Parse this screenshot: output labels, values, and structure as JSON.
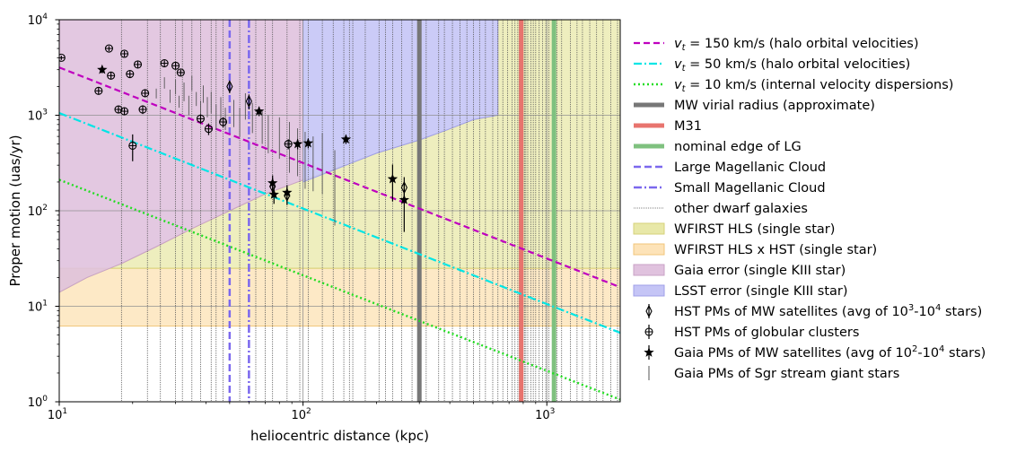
{
  "chart_data": {
    "type": "scatter",
    "xlabel": "heliocentric distance (kpc)",
    "ylabel": "Proper motion (uas/yr)",
    "x_scale": "log",
    "y_scale": "log",
    "xlim": [
      10,
      2000
    ],
    "ylim": [
      1,
      10000
    ],
    "grid": "major, gray",
    "legend_placement": "right, outside plot",
    "x_ticks": [
      {
        "value": 10,
        "base": "10",
        "exp": "1"
      },
      {
        "value": 100,
        "base": "10",
        "exp": "2"
      },
      {
        "value": 1000,
        "base": "10",
        "exp": "3"
      }
    ],
    "y_ticks": [
      {
        "value": 1,
        "base": "10",
        "exp": "0"
      },
      {
        "value": 10,
        "base": "10",
        "exp": "1"
      },
      {
        "value": 100,
        "base": "10",
        "exp": "2"
      },
      {
        "value": 1000,
        "base": "10",
        "exp": "3"
      },
      {
        "value": 10000,
        "base": "10",
        "exp": "4"
      }
    ],
    "legend": [
      {
        "key": "vt150",
        "prefix": "v",
        "sub": "t",
        "text": " = 150 km/s (halo orbital velocities)",
        "kind": "line",
        "color": "#bf00bf",
        "dash": "7 4",
        "width": 2.2
      },
      {
        "key": "vt50",
        "prefix": "v",
        "sub": "t",
        "text": " = 50 km/s (halo orbital velocities)",
        "kind": "line",
        "color": "#00e5e5",
        "dash": "9 3 2 3",
        "width": 2.2
      },
      {
        "key": "vt10",
        "prefix": "v",
        "sub": "t",
        "text": " = 10 km/s (internal velocity dispersions)",
        "kind": "line",
        "color": "#22dd22",
        "dash": "2 3",
        "width": 2.4
      },
      {
        "key": "mw_vir",
        "text": "MW virial radius (approximate)",
        "kind": "line",
        "color": "#777777",
        "dash": "",
        "width": 5
      },
      {
        "key": "m31",
        "text": "M31",
        "kind": "line",
        "color": "#e8746e",
        "dash": "",
        "width": 5
      },
      {
        "key": "lg_edge",
        "text": "nominal edge of LG",
        "kind": "line",
        "color": "#7fc17f",
        "dash": "",
        "width": 5
      },
      {
        "key": "lmc",
        "text": "Large Magellanic Cloud",
        "kind": "line",
        "color": "#7b68ee",
        "dash": "8 4",
        "width": 2.5
      },
      {
        "key": "smc",
        "text": "Small Magellanic Cloud",
        "kind": "line",
        "color": "#7b68ee",
        "dash": "9 3 2 3",
        "width": 2.5
      },
      {
        "key": "dwarfs",
        "text": "other dwarf galaxies",
        "kind": "line",
        "color": "#555555",
        "dash": "1 1",
        "width": 0.8
      },
      {
        "key": "wfirst_hls",
        "text": "WFIRST HLS (single star)",
        "kind": "patch",
        "color": "#e8e8a8",
        "edge": "#d6d27a"
      },
      {
        "key": "wfirst_hst",
        "text": "WFIRST HLS x HST (single star)",
        "kind": "patch",
        "color": "#fde3b8",
        "edge": "#f1c57a"
      },
      {
        "key": "gaia_err",
        "text": "Gaia error (single KIII star)",
        "kind": "patch",
        "color": "#e0c2de",
        "edge": "#c9a2c6"
      },
      {
        "key": "lsst_err",
        "text": "LSST error (single KIII star)",
        "kind": "patch",
        "color": "#c5c5f6",
        "edge": "#9f9fe8"
      },
      {
        "key": "hst_sat",
        "text": "HST PMs of MW satellites (avg of 10",
        "sup1": "3",
        "mid": "-10",
        "sup2": "4",
        "tail": " stars)",
        "kind": "marker",
        "marker": "thin_diamond"
      },
      {
        "key": "hst_gc",
        "text": "HST PMs of globular clusters",
        "kind": "marker",
        "marker": "circle_plus"
      },
      {
        "key": "gaia_sat",
        "text": "Gaia PMs of MW satellites (avg of 10",
        "sup1": "2",
        "mid": "-10",
        "sup2": "4",
        "tail": " stars)",
        "kind": "marker",
        "marker": "star"
      },
      {
        "key": "gaia_sgr",
        "text": "Gaia PMs of Sgr stream giant stars",
        "kind": "marker",
        "marker": "vline"
      }
    ],
    "series": [
      {
        "name": "v_t = 150 km/s (halo orbital velocities)",
        "key": "vt150",
        "relation": "pm = 4.74047 / (v_t * d)",
        "v_t_km_s": 150
      },
      {
        "name": "v_t = 50 km/s (halo orbital velocities)",
        "key": "vt50",
        "relation": "pm = 4.74047 / (v_t * d)",
        "v_t_km_s": 50
      },
      {
        "name": "v_t = 10 km/s (internal velocity dispersions)",
        "key": "vt10",
        "relation": "pm = 4.74047 / (v_t * d)",
        "v_t_km_s": 10
      },
      {
        "name": "MW virial radius (approximate)",
        "key": "mw_vir",
        "x": 300
      },
      {
        "name": "M31",
        "key": "m31",
        "x": 785
      },
      {
        "name": "nominal edge of LG",
        "key": "lg_edge",
        "x": 1070
      },
      {
        "name": "Large Magellanic Cloud",
        "key": "lmc",
        "x": 50
      },
      {
        "name": "Small Magellanic Cloud",
        "key": "smc",
        "x": 60
      },
      {
        "name": "other dwarf galaxies",
        "key": "dwarfs",
        "x": [
          18,
          23,
          26,
          30,
          32,
          35,
          38,
          42,
          44,
          47,
          55,
          64,
          70,
          75,
          86,
          97,
          105,
          120,
          133,
          147,
          155,
          160,
          180,
          205,
          218,
          233,
          254,
          280,
          320,
          360,
          380,
          410,
          440,
          470,
          500,
          530,
          560,
          600,
          630,
          660,
          690,
          720,
          740,
          760,
          770,
          790,
          800,
          810,
          820,
          835,
          860,
          880,
          900,
          930,
          960,
          990,
          1020,
          1100,
          1150,
          1250,
          1330,
          1400,
          1500,
          1600,
          1700,
          1830,
          1950
        ]
      },
      {
        "name": "WFIRST HLS (single star)",
        "key": "wfirst_hls",
        "lower": [
          [
            10,
            25
          ],
          [
            2000,
            25
          ]
        ],
        "upper": [
          [
            10,
            14
          ],
          [
            13,
            20
          ],
          [
            18,
            28
          ],
          [
            25,
            42
          ],
          [
            35,
            65
          ],
          [
            50,
            100
          ],
          [
            70,
            150
          ],
          [
            100,
            210
          ],
          [
            150,
            300
          ],
          [
            200,
            400
          ],
          [
            300,
            550
          ],
          [
            400,
            720
          ],
          [
            500,
            900
          ],
          [
            630,
            1000
          ],
          [
            630,
            10000
          ],
          [
            2000,
            10000
          ]
        ]
      },
      {
        "name": "WFIRST HLS x HST (single star)",
        "key": "wfirst_hst",
        "lower": 6.2,
        "upper": 25
      },
      {
        "name": "Gaia error (single KIII star)",
        "key": "gaia_err",
        "x": [
          10,
          13,
          18,
          25,
          35,
          50,
          70,
          90,
          100
        ],
        "lower": [
          14,
          20,
          28,
          42,
          65,
          100,
          150,
          190,
          210
        ],
        "upper": 10000
      },
      {
        "name": "LSST error (single KIII star)",
        "key": "lsst_err",
        "outline": [
          [
            100,
            10000
          ],
          [
            630,
            10000
          ],
          [
            630,
            1000
          ],
          [
            500,
            900
          ],
          [
            400,
            720
          ],
          [
            300,
            550
          ],
          [
            200,
            400
          ],
          [
            150,
            300
          ],
          [
            100,
            200
          ]
        ]
      },
      {
        "name": "HST PMs of MW satellites (avg of 10^3-10^4 stars)",
        "key": "hst_sat",
        "points": [
          {
            "x": 50,
            "y": 2000,
            "err": 300
          },
          {
            "x": 60,
            "y": 1400,
            "err": 250
          },
          {
            "x": 75,
            "y": 180,
            "err": 40
          },
          {
            "x": 86,
            "y": 145,
            "err": 30
          },
          {
            "x": 260,
            "y": 175,
            "err": 50
          }
        ]
      },
      {
        "name": "HST PMs of globular clusters",
        "key": "hst_gc",
        "points": [
          {
            "x": 10.2,
            "y": 4000,
            "err": 200
          },
          {
            "x": 14.5,
            "y": 1800,
            "err": 150
          },
          {
            "x": 16,
            "y": 5000,
            "err": 300
          },
          {
            "x": 16.3,
            "y": 2600,
            "err": 200
          },
          {
            "x": 17.5,
            "y": 1150,
            "err": 100
          },
          {
            "x": 18.5,
            "y": 4400,
            "err": 300
          },
          {
            "x": 18.5,
            "y": 1100,
            "err": 100
          },
          {
            "x": 19.5,
            "y": 2700,
            "err": 200
          },
          {
            "x": 20,
            "y": 480,
            "err": 150
          },
          {
            "x": 21,
            "y": 3400,
            "err": 250
          },
          {
            "x": 22,
            "y": 1150,
            "err": 120
          },
          {
            "x": 22.5,
            "y": 1700,
            "err": 150
          },
          {
            "x": 27,
            "y": 3500,
            "err": 250
          },
          {
            "x": 30,
            "y": 3300,
            "err": 250
          },
          {
            "x": 31.5,
            "y": 2800,
            "err": 200
          },
          {
            "x": 38,
            "y": 920,
            "err": 100
          },
          {
            "x": 41,
            "y": 720,
            "err": 100
          },
          {
            "x": 47,
            "y": 850,
            "err": 100
          },
          {
            "x": 87,
            "y": 500,
            "err": 60
          }
        ]
      },
      {
        "name": "Gaia PMs of MW satellites (avg of 10^2-10^4 stars)",
        "key": "gaia_sat",
        "points": [
          {
            "x": 15,
            "y": 3000,
            "err": 250
          },
          {
            "x": 66,
            "y": 1100,
            "err": 120
          },
          {
            "x": 75,
            "y": 195,
            "err": 40
          },
          {
            "x": 76,
            "y": 148,
            "err": 30
          },
          {
            "x": 86,
            "y": 155,
            "err": 30
          },
          {
            "x": 95,
            "y": 500,
            "err": 60
          },
          {
            "x": 105,
            "y": 510,
            "err": 60
          },
          {
            "x": 150,
            "y": 560,
            "err": 60
          },
          {
            "x": 233,
            "y": 215,
            "err": 90
          },
          {
            "x": 260,
            "y": 130,
            "err": 70
          }
        ]
      },
      {
        "name": "Gaia PMs of Sgr stream giant stars",
        "key": "gaia_sgr",
        "points": [
          {
            "x": 25,
            "y": 1700,
            "err": 200
          },
          {
            "x": 27,
            "y": 2200,
            "err": 300
          },
          {
            "x": 28.5,
            "y": 1600,
            "err": 250
          },
          {
            "x": 30,
            "y": 2000,
            "err": 350
          },
          {
            "x": 31,
            "y": 1400,
            "err": 200
          },
          {
            "x": 32.5,
            "y": 1800,
            "err": 400
          },
          {
            "x": 34,
            "y": 1300,
            "err": 300
          },
          {
            "x": 35,
            "y": 2200,
            "err": 400
          },
          {
            "x": 36.5,
            "y": 1500,
            "err": 250
          },
          {
            "x": 38,
            "y": 1100,
            "err": 300
          },
          {
            "x": 39,
            "y": 1700,
            "err": 350
          },
          {
            "x": 40.5,
            "y": 1250,
            "err": 300
          },
          {
            "x": 42,
            "y": 1400,
            "err": 350
          },
          {
            "x": 44,
            "y": 1000,
            "err": 300
          },
          {
            "x": 46,
            "y": 1200,
            "err": 350
          },
          {
            "x": 48,
            "y": 950,
            "err": 250
          },
          {
            "x": 52,
            "y": 1100,
            "err": 350
          },
          {
            "x": 55,
            "y": 900,
            "err": 300
          },
          {
            "x": 58,
            "y": 1300,
            "err": 400
          },
          {
            "x": 62,
            "y": 1000,
            "err": 350
          },
          {
            "x": 68,
            "y": 800,
            "err": 300
          },
          {
            "x": 72,
            "y": 700,
            "err": 300
          },
          {
            "x": 80,
            "y": 650,
            "err": 300
          },
          {
            "x": 88,
            "y": 550,
            "err": 300
          },
          {
            "x": 95,
            "y": 480,
            "err": 250
          },
          {
            "x": 102,
            "y": 420,
            "err": 250
          },
          {
            "x": 110,
            "y": 380,
            "err": 220
          },
          {
            "x": 120,
            "y": 400,
            "err": 250
          },
          {
            "x": 135,
            "y": 250,
            "err": 180
          }
        ]
      }
    ]
  }
}
